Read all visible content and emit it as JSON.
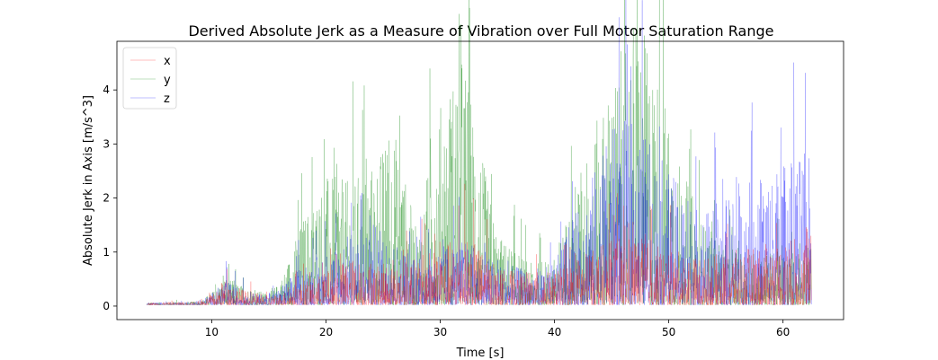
{
  "chart_data": {
    "type": "line",
    "title": "Derived Absolute Jerk as a Measure of Vibration over Full Motor Saturation Range",
    "xlabel": "Time [s]",
    "ylabel": "Absolute Jerk in Axis [m/s^3]",
    "xlim": [
      1.7,
      65.3
    ],
    "ylim": [
      -0.25,
      4.9
    ],
    "xticks": [
      10,
      20,
      30,
      40,
      50,
      60
    ],
    "yticks": [
      0,
      1,
      2,
      3,
      4
    ],
    "xtick_labels": [
      "10",
      "20",
      "30",
      "40",
      "50",
      "60"
    ],
    "ytick_labels": [
      "0",
      "1",
      "2",
      "3",
      "4"
    ],
    "grid": false,
    "legend_position": "top-left",
    "series": [
      {
        "name": "x",
        "color": "#ff0000",
        "t_start": 4.3,
        "t_end": 62.5,
        "envelope": {
          "t": [
            4.3,
            9,
            10.5,
            11,
            13,
            15,
            16,
            18,
            20,
            22,
            24,
            26,
            28,
            30,
            32,
            33,
            35,
            38,
            40,
            42,
            45,
            47,
            49,
            51,
            53,
            55,
            58,
            60,
            62.5
          ],
          "v": [
            0.02,
            0.03,
            0.12,
            0.22,
            0.12,
            0.08,
            0.1,
            0.2,
            0.28,
            0.4,
            0.35,
            0.35,
            0.4,
            0.5,
            0.6,
            0.55,
            0.3,
            0.28,
            0.28,
            0.4,
            0.55,
            0.6,
            0.5,
            0.45,
            0.4,
            0.45,
            0.5,
            0.55,
            0.6
          ]
        }
      },
      {
        "name": "y",
        "color": "#008000",
        "t_start": 4.3,
        "t_end": 62.5,
        "envelope": {
          "t": [
            4.3,
            9,
            10.5,
            11,
            13,
            15,
            16,
            18,
            20,
            22,
            24,
            26,
            28,
            30,
            32,
            33,
            35,
            38,
            40,
            42,
            45,
            47,
            49,
            51,
            53,
            55,
            58,
            60,
            62.5
          ],
          "v": [
            0.02,
            0.03,
            0.15,
            0.25,
            0.15,
            0.1,
            0.2,
            0.75,
            1.1,
            1.05,
            1.2,
            1.5,
            0.6,
            1.7,
            2.2,
            1.6,
            0.6,
            0.35,
            0.4,
            1.1,
            1.9,
            2.5,
            2.0,
            1.2,
            0.7,
            0.5,
            0.45,
            0.45,
            0.5
          ]
        }
      },
      {
        "name": "z",
        "color": "#0000ff",
        "t_start": 4.3,
        "t_end": 62.5,
        "envelope": {
          "t": [
            4.3,
            9,
            10.5,
            11,
            13,
            15,
            16,
            18,
            20,
            22,
            24,
            26,
            28,
            30,
            32,
            33,
            35,
            38,
            40,
            42,
            45,
            47,
            49,
            51,
            53,
            55,
            58,
            60,
            62.5
          ],
          "v": [
            0.02,
            0.03,
            0.14,
            0.22,
            0.12,
            0.08,
            0.15,
            0.35,
            0.45,
            0.6,
            0.7,
            0.55,
            0.45,
            0.5,
            0.55,
            0.5,
            0.35,
            0.3,
            0.35,
            0.8,
            1.5,
            1.6,
            1.3,
            1.0,
            0.8,
            0.9,
            1.1,
            1.2,
            1.3
          ]
        }
      }
    ]
  }
}
